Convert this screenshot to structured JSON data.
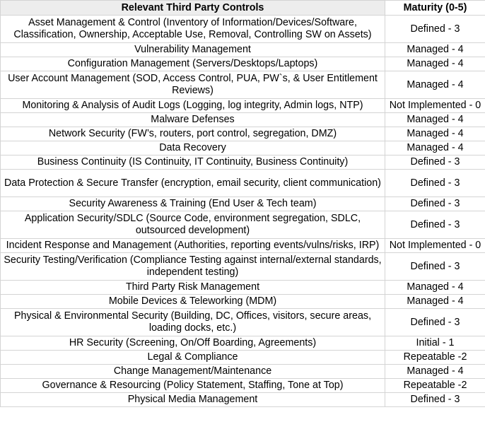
{
  "table": {
    "headers": [
      "Relevant Third Party Controls",
      "Maturity (0-5)"
    ],
    "rows": [
      {
        "control": "Asset Management & Control (Inventory of Information/Devices/Software, Classification, Ownership, Acceptable Use, Removal, Controlling SW on Assets)",
        "maturity": "Defined - 3"
      },
      {
        "control": "Vulnerability Management",
        "maturity": "Managed - 4"
      },
      {
        "control": "Configuration Management (Servers/Desktops/Laptops)",
        "maturity": "Managed - 4"
      },
      {
        "control": "User Account Management (SOD, Access Control, PUA, PW`s, & User Entitlement Reviews)",
        "maturity": "Managed - 4"
      },
      {
        "control": "Monitoring & Analysis of Audit Logs (Logging, log integrity, Admin logs, NTP)",
        "maturity": "Not Implemented - 0"
      },
      {
        "control": "Malware Defenses",
        "maturity": "Managed - 4"
      },
      {
        "control": "Network Security (FW’s, routers, port control, segregation, DMZ)",
        "maturity": "Managed - 4"
      },
      {
        "control": "Data Recovery",
        "maturity": "Managed - 4"
      },
      {
        "control": "Business Continuity (IS Continuity, IT Continuity, Business Continuity)",
        "maturity": "Defined - 3"
      },
      {
        "control": "Data Protection & Secure Transfer (encryption, email security, client communication)",
        "maturity": "Defined - 3"
      },
      {
        "control": "Security Awareness & Training (End User & Tech team)",
        "maturity": "Defined - 3"
      },
      {
        "control": "Application Security/SDLC (Source Code, environment segregation, SDLC, outsourced development)",
        "maturity": "Defined - 3"
      },
      {
        "control": "Incident Response and Management (Authorities, reporting events/vulns/risks, IRP)",
        "maturity": "Not Implemented - 0"
      },
      {
        "control": "Security Testing/Verification (Compliance Testing against internal/external standards, independent testing)",
        "maturity": "Defined - 3"
      },
      {
        "control": "Third Party Risk Management",
        "maturity": "Managed - 4"
      },
      {
        "control": "Mobile Devices & Teleworking (MDM)",
        "maturity": "Managed - 4"
      },
      {
        "control": "Physical & Environmental Security (Building, DC, Offices, visitors, secure areas, loading docks, etc.)",
        "maturity": "Defined - 3"
      },
      {
        "control": "HR Security (Screening, On/Off Boarding, Agreements)",
        "maturity": "Initial - 1"
      },
      {
        "control": "Legal & Compliance",
        "maturity": "Repeatable -2"
      },
      {
        "control": "Change Management/Maintenance",
        "maturity": "Managed - 4"
      },
      {
        "control": "Governance & Resourcing (Policy Statement, Staffing, Tone at Top)",
        "maturity": "Repeatable -2"
      },
      {
        "control": "Physical Media Management",
        "maturity": "Defined - 3"
      }
    ]
  }
}
